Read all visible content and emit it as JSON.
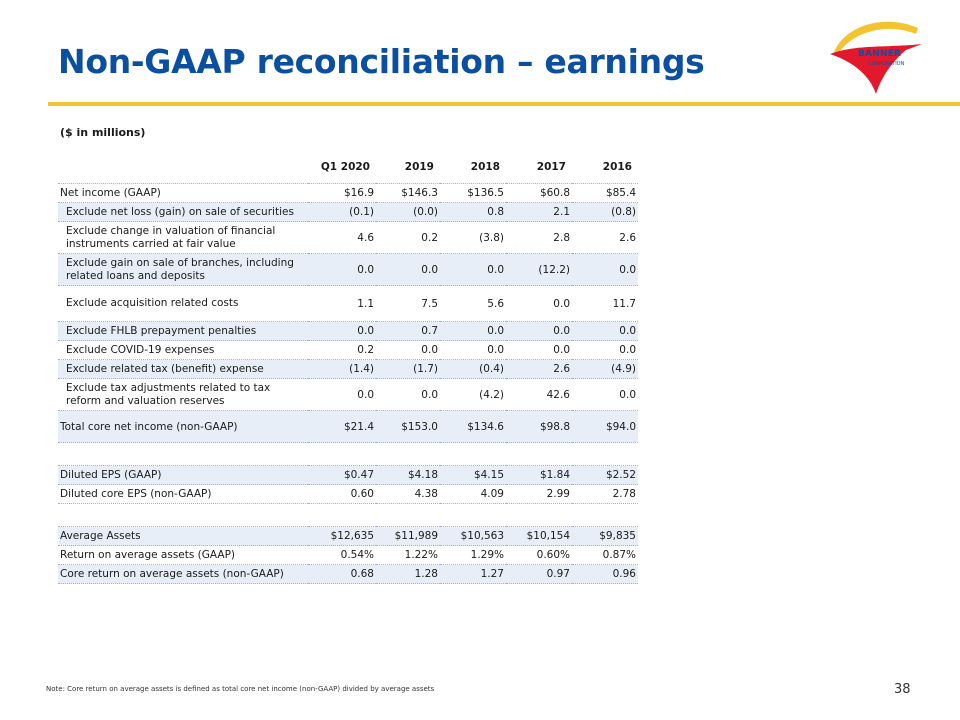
{
  "title": "Non-GAAP reconciliation – earnings",
  "logo": {
    "text": "BANNER",
    "sub": "CORPORATION"
  },
  "units_label": "($ in millions)",
  "columns": [
    "Q1 2020",
    "2019",
    "2018",
    "2017",
    "2016"
  ],
  "rows": [
    {
      "label": "Net income (GAAP)",
      "values": [
        "$16.9",
        "$146.3",
        "$136.5",
        "$60.8",
        "$85.4"
      ]
    },
    {
      "label": "Exclude net loss (gain) on sale of securities",
      "values": [
        "(0.1)",
        "(0.0)",
        "0.8",
        "2.1",
        "(0.8)"
      ]
    },
    {
      "label": "Exclude change in valuation of financial instruments carried at fair value",
      "values": [
        "4.6",
        "0.2",
        "(3.8)",
        "2.8",
        "2.6"
      ]
    },
    {
      "label": "Exclude gain on sale of branches, including related loans and deposits",
      "values": [
        "0.0",
        "0.0",
        "0.0",
        "(12.2)",
        "0.0"
      ]
    },
    {
      "label": "Exclude acquisition related costs",
      "values": [
        "1.1",
        "7.5",
        "5.6",
        "0.0",
        "11.7"
      ]
    },
    {
      "label": "Exclude FHLB prepayment penalties",
      "values": [
        "0.0",
        "0.7",
        "0.0",
        "0.0",
        "0.0"
      ]
    },
    {
      "label": "Exclude COVID-19 expenses",
      "values": [
        "0.2",
        "0.0",
        "0.0",
        "0.0",
        "0.0"
      ]
    },
    {
      "label": "Exclude related tax (benefit) expense",
      "values": [
        "(1.4)",
        "(1.7)",
        "(0.4)",
        "2.6",
        "(4.9)"
      ]
    },
    {
      "label": "Exclude tax adjustments related to tax reform and valuation reserves",
      "values": [
        "0.0",
        "0.0",
        "(4.2)",
        "42.6",
        "0.0"
      ]
    },
    {
      "label": "Total core net income (non-GAAP)",
      "values": [
        "$21.4",
        "$153.0",
        "$134.6",
        "$98.8",
        "$94.0"
      ]
    },
    {
      "label": "Diluted EPS (GAAP)",
      "values": [
        "$0.47",
        "$4.18",
        "$4.15",
        "$1.84",
        "$2.52"
      ]
    },
    {
      "label": "Diluted core EPS (non-GAAP)",
      "values": [
        "0.60",
        "4.38",
        "4.09",
        "2.99",
        "2.78"
      ]
    },
    {
      "label": "Average Assets",
      "values": [
        "$12,635",
        "$11,989",
        "$10,563",
        "$10,154",
        "$9,835"
      ]
    },
    {
      "label": "Return on average assets (GAAP)",
      "values": [
        "0.54%",
        "1.22%",
        "1.29%",
        "0.60%",
        "0.87%"
      ]
    },
    {
      "label": "Core return on average assets (non-GAAP)",
      "values": [
        "0.68",
        "1.28",
        "1.27",
        "0.97",
        "0.96"
      ]
    }
  ],
  "footnote": "Note: Core return on average assets is defined as total core net income (non-GAAP) divided by average assets",
  "page_number": "38",
  "colors": {
    "title": "#0a4fa0",
    "rule": "#f4c430",
    "row_shade": "#e7eef8",
    "logo_red": "#e3182d"
  }
}
